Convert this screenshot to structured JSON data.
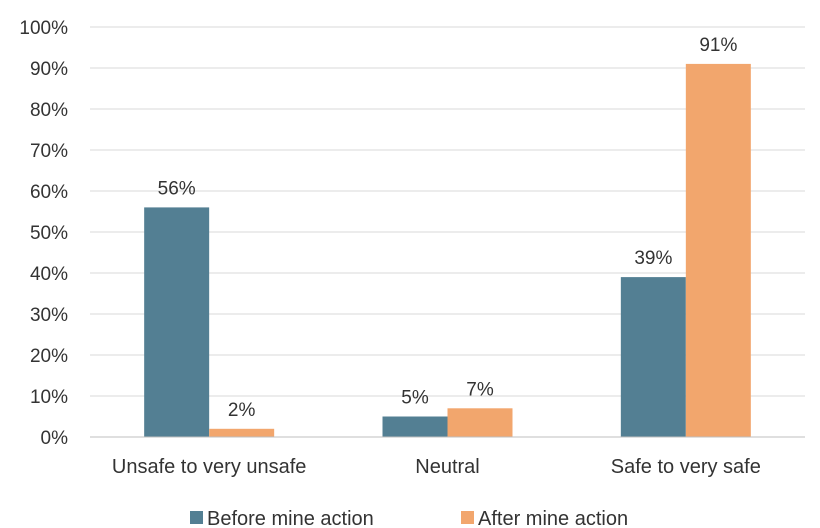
{
  "chart_data": {
    "type": "bar",
    "title": "",
    "xlabel": "",
    "ylabel": "",
    "categories": [
      "Unsafe to very unsafe",
      "Neutral",
      "Safe to very safe"
    ],
    "series": [
      {
        "name": "Before mine action",
        "values": [
          56,
          5,
          39
        ],
        "labels": [
          "56%",
          "5%",
          "39%"
        ],
        "color": "#537f93"
      },
      {
        "name": "After mine action",
        "values": [
          2,
          7,
          91
        ],
        "labels": [
          "2%",
          "7%",
          "91%"
        ],
        "color": "#f2a66d"
      }
    ],
    "ylim": [
      0,
      100
    ],
    "yticks": [
      "0%",
      "10%",
      "20%",
      "30%",
      "40%",
      "50%",
      "60%",
      "70%",
      "80%",
      "90%",
      "100%"
    ],
    "grid": true,
    "legend": "bottom"
  }
}
